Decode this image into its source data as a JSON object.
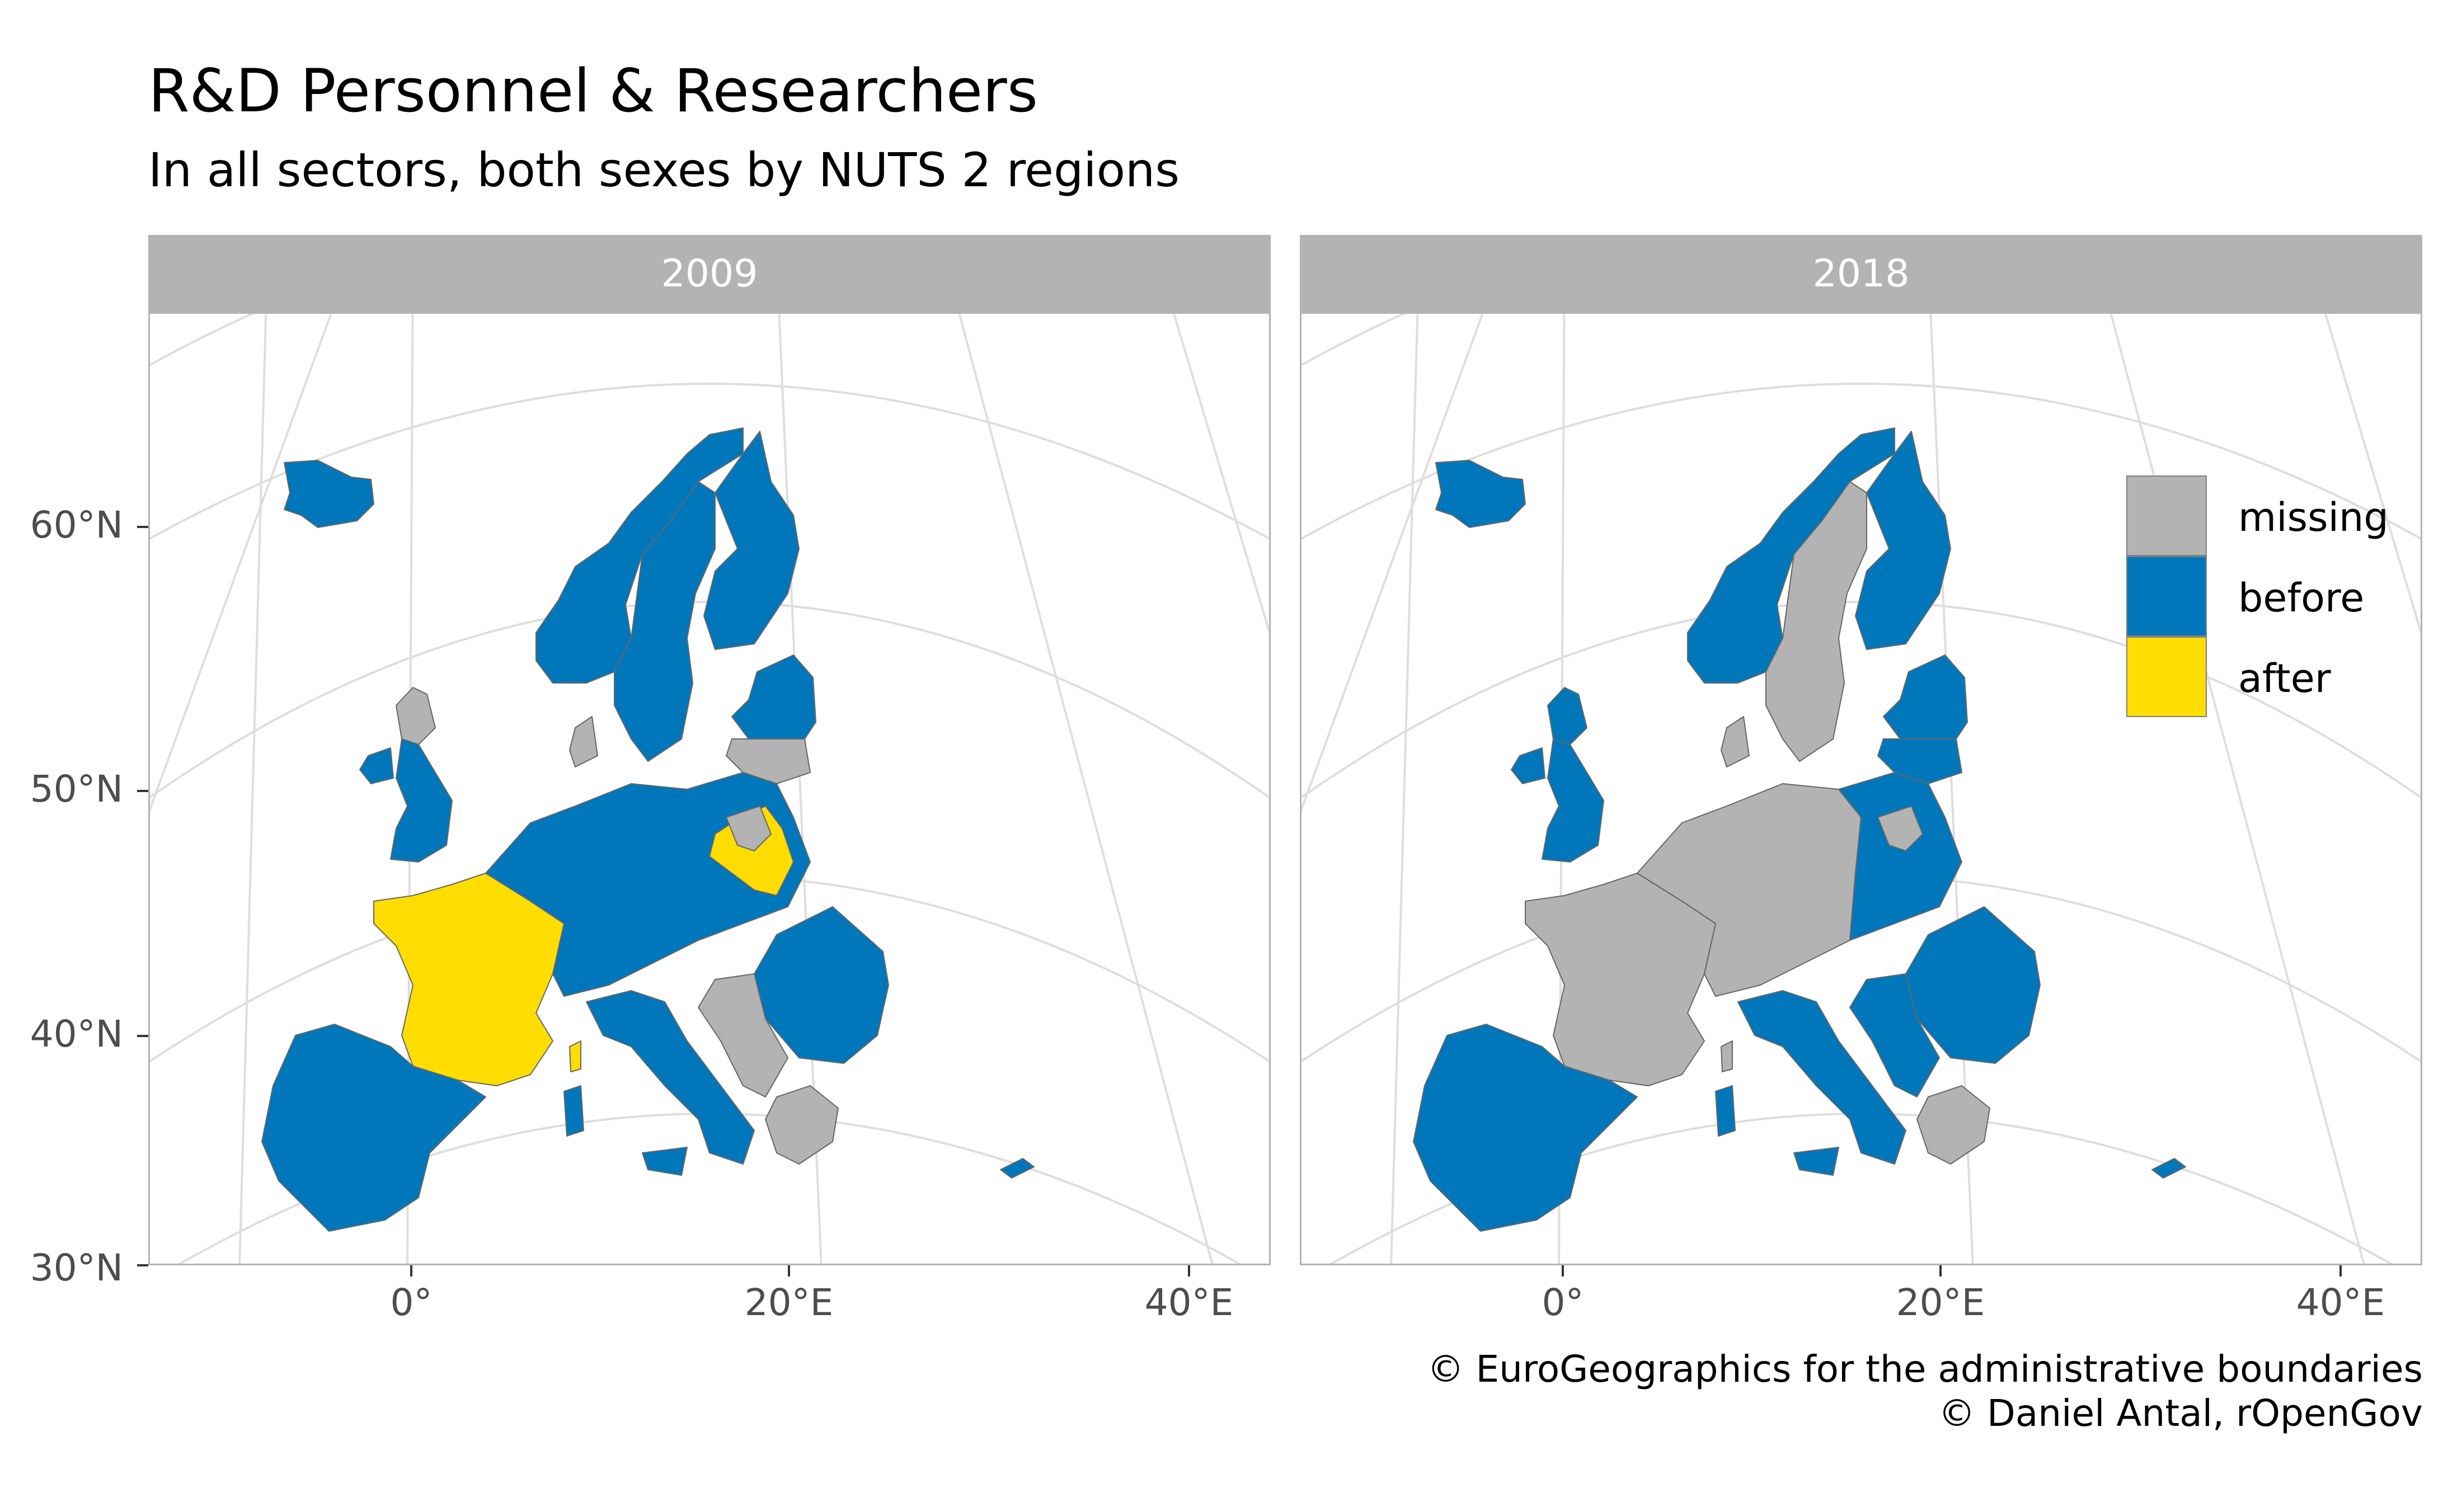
{
  "title": "R&D Personnel & Researchers",
  "subtitle": "In all sectors, both sexes by NUTS 2 regions",
  "panels": [
    "2009",
    "2018"
  ],
  "y_axis_labels": [
    "60°N",
    "50°N",
    "40°N",
    "30°N"
  ],
  "x_axis_labels": [
    "0°",
    "20°E",
    "40°E"
  ],
  "legend": [
    {
      "label": "missing",
      "color": "#b3b3b3"
    },
    {
      "label": "before",
      "color": "#0077bb"
    },
    {
      "label": "after",
      "color": "#ffdd00"
    }
  ],
  "caption": {
    "line1": "© EuroGeographics for the administrative boundaries",
    "line2": "© Daniel Antal, rOpenGov"
  },
  "map_data": {
    "2009": {
      "before": [
        "Iceland",
        "Norway",
        "Sweden",
        "Finland",
        "Estonia",
        "Latvia",
        "Lithuania",
        "Ireland",
        "United Kingdom",
        "Spain",
        "Portugal",
        "Italy",
        "Germany",
        "Denmark",
        "Czechia",
        "Austria",
        "Slovenia",
        "Croatia",
        "Hungary",
        "Slovakia",
        "Romania",
        "Bulgaria",
        "Belgium",
        "Netherlands",
        "Luxembourg",
        "Malta",
        "Cyprus"
      ],
      "after": [
        "France",
        "Poland (part)",
        "Corsica"
      ],
      "missing": [
        "Greece",
        "Western Balkans",
        "Scotland (part)",
        "Poland (part)"
      ]
    },
    "2018": {
      "before": [
        "Iceland",
        "Norway",
        "Finland",
        "Estonia",
        "Latvia",
        "Lithuania",
        "Ireland",
        "United Kingdom",
        "Spain",
        "Portugal",
        "Italy",
        "Poland",
        "Slovakia",
        "Hungary",
        "Romania",
        "Bulgaria",
        "Slovenia",
        "Croatia",
        "Malta",
        "Cyprus"
      ],
      "after": [],
      "missing": [
        "Sweden",
        "France",
        "Germany",
        "Belgium",
        "Netherlands",
        "Denmark",
        "Czechia",
        "Austria",
        "Greece",
        "Western Balkans"
      ]
    }
  }
}
